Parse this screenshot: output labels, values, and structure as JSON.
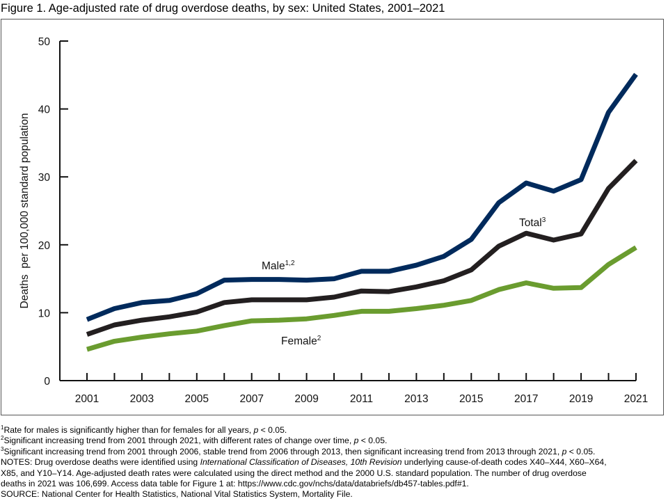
{
  "figure": {
    "title": "Figure 1. Age-adjusted rate of drug overdose deaths, by sex: United States, 2001–2021"
  },
  "chart_data": {
    "type": "line",
    "title": "Figure 1. Age-adjusted rate of drug overdose deaths, by sex: United States, 2001–2021",
    "xlabel": "",
    "ylabel": "Deaths  per 100,000 standard population",
    "x": [
      2001,
      2002,
      2003,
      2004,
      2005,
      2006,
      2007,
      2008,
      2009,
      2010,
      2011,
      2012,
      2013,
      2014,
      2015,
      2016,
      2017,
      2018,
      2019,
      2020,
      2021
    ],
    "xticks": [
      "2001",
      "2003",
      "2005",
      "2007",
      "2009",
      "2011",
      "2013",
      "2015",
      "2017",
      "2019",
      "2021"
    ],
    "yticks": [
      "0",
      "10",
      "20",
      "30",
      "40",
      "50"
    ],
    "ylim": [
      0,
      50
    ],
    "xlim": [
      2001,
      2021
    ],
    "grid": false,
    "legend": "inline labels",
    "series": [
      {
        "name": "Male",
        "label": "Male",
        "sup": "1,2",
        "color": "#002a5c",
        "values": [
          9.0,
          10.6,
          11.5,
          11.8,
          12.8,
          14.8,
          14.9,
          14.9,
          14.8,
          15.0,
          16.1,
          16.1,
          17.0,
          18.3,
          20.8,
          26.2,
          29.1,
          27.9,
          29.6,
          39.5,
          45.1
        ]
      },
      {
        "name": "Total",
        "label": "Total",
        "sup": "3",
        "color": "#231f20",
        "values": [
          6.8,
          8.2,
          8.9,
          9.4,
          10.1,
          11.5,
          11.9,
          11.9,
          11.9,
          12.3,
          13.2,
          13.1,
          13.8,
          14.7,
          16.3,
          19.8,
          21.7,
          20.7,
          21.6,
          28.3,
          32.4
        ]
      },
      {
        "name": "Female",
        "label": "Female",
        "sup": "2",
        "color": "#6a9c2f",
        "values": [
          4.6,
          5.8,
          6.4,
          6.9,
          7.3,
          8.1,
          8.8,
          8.9,
          9.1,
          9.6,
          10.2,
          10.2,
          10.6,
          11.1,
          11.8,
          13.4,
          14.4,
          13.6,
          13.7,
          17.1,
          19.6
        ]
      }
    ]
  },
  "footnotes": {
    "fn1_mark": "1",
    "fn1_text_a": "Rate for males is significantly higher than for females for all years, ",
    "fn1_p": "p",
    "fn1_text_b": " < 0.05.",
    "fn2_mark": "2",
    "fn2_text_a": "Significant increasing trend from 2001 through 2021, with different rates of change over time, ",
    "fn2_p": "p",
    "fn2_text_b": " < 0.05.",
    "fn3_mark": "3",
    "fn3_text_a": "Significant increasing trend from 2001 through 2006, stable trend from 2006 through 2013, then significant increasing trend from 2013 through 2021, ",
    "fn3_p": "p",
    "fn3_text_b": " < 0.05.",
    "notes_a": "NOTES: Drug overdose deaths were identified using ",
    "notes_italic": "International Classification of Diseases, 10th Revision",
    "notes_b": " underlying cause-of-death codes X40–X44, X60–X64,",
    "notes_line2": "X85, and Y10–Y14. Age-adjusted death rates were calculated using the direct method and the 2000 U.S. standard population. The number of drug overdose",
    "notes_line3": "deaths in 2021 was 106,699. Access data table for Figure 1 at: https://www.cdc.gov/nchs/data/databriefs/db457-tables.pdf#1.",
    "source": "SOURCE: National Center for Health Statistics, National Vital Statistics System, Mortality File."
  }
}
